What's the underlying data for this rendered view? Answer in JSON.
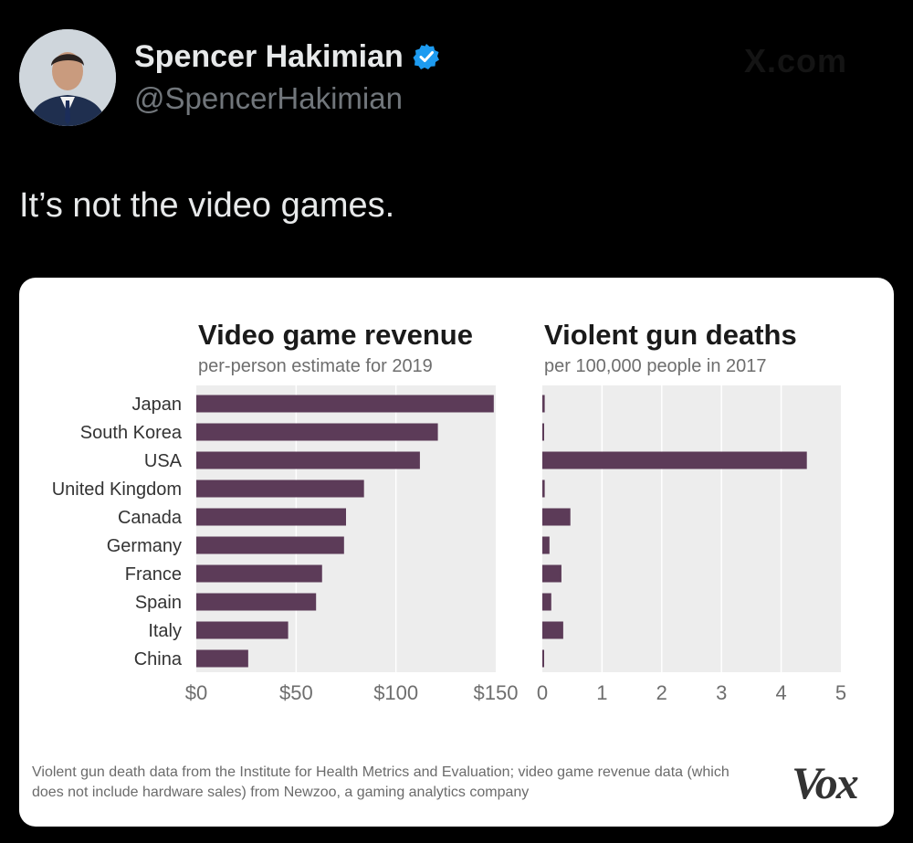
{
  "tweet": {
    "display_name": "Spencer Hakimian",
    "handle": "@SpencerHakimian",
    "text": "It’s not the video games.",
    "watermark": "X.com"
  },
  "icons": {
    "avatar": "profile-photo",
    "verified": "verified-badge-icon",
    "brand": "vox-logo"
  },
  "colors": {
    "bar": "#5c3b58",
    "panel_bg": "#ededed",
    "verified": "#1d9bf0"
  },
  "chart_data": [
    {
      "type": "bar",
      "orientation": "horizontal",
      "title": "Video game revenue",
      "subtitle": "per-person estimate for 2019",
      "categories": [
        "Japan",
        "South Korea",
        "USA",
        "United Kingdom",
        "Canada",
        "Germany",
        "France",
        "Spain",
        "Italy",
        "China"
      ],
      "values": [
        149,
        121,
        112,
        84,
        75,
        74,
        63,
        60,
        46,
        26
      ],
      "xlim": [
        0,
        150
      ],
      "xticks": [
        "$0",
        "$50",
        "$100",
        "$150"
      ],
      "grid": true
    },
    {
      "type": "bar",
      "orientation": "horizontal",
      "title": "Violent gun deaths",
      "subtitle": "per 100,000 people in 2017",
      "categories": [
        "Japan",
        "South Korea",
        "USA",
        "United Kingdom",
        "Canada",
        "Germany",
        "France",
        "Spain",
        "Italy",
        "China"
      ],
      "values": [
        0.04,
        0.03,
        4.43,
        0.04,
        0.47,
        0.12,
        0.32,
        0.15,
        0.35,
        0.03
      ],
      "xlim": [
        0,
        5
      ],
      "xticks": [
        "0",
        "1",
        "2",
        "3",
        "4",
        "5"
      ],
      "grid": true
    }
  ],
  "source_note": "Violent gun death data from the Institute for Health Metrics and Evaluation; video game revenue data (which does not include hardware sales) from Newzoo, a gaming analytics company",
  "brand": "Vox"
}
